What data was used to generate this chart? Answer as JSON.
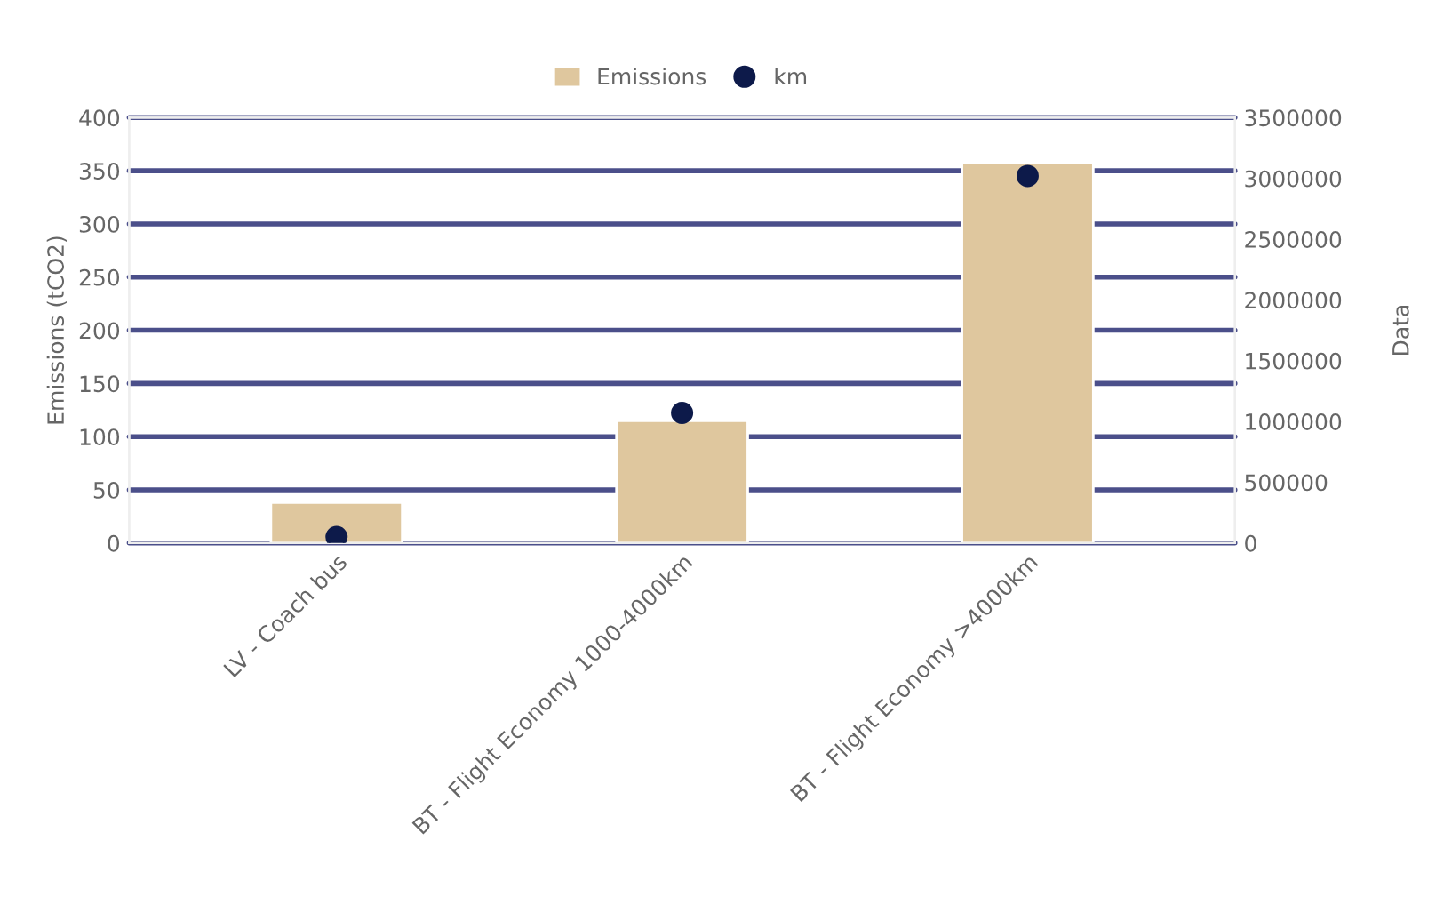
{
  "chart_data": {
    "type": "bar",
    "categories": [
      "LV - Coach bus",
      "BT - Flight Economy 1000-4000km",
      "BT - Flight Economy >4000km"
    ],
    "series": [
      {
        "name": "Emissions",
        "color": "#dfc79e",
        "values": [
          38,
          115,
          358
        ]
      },
      {
        "name": "km",
        "type": "scatter",
        "axis": "y2",
        "color": "#0d1a4a",
        "marker": "circle",
        "values": [
          50000,
          1070000,
          3020000
        ]
      }
    ],
    "ylabel": "Emissions (tCO2)",
    "y2label": "Data",
    "ylim": [
      0,
      400
    ],
    "yticks": [
      0,
      50,
      100,
      150,
      200,
      250,
      300,
      350,
      400
    ],
    "y2lim": [
      0,
      3500000
    ],
    "y2ticks": [
      0,
      500000,
      1000000,
      1500000,
      2000000,
      2500000,
      3000000,
      3500000
    ],
    "grid": "y",
    "legend": "top"
  }
}
